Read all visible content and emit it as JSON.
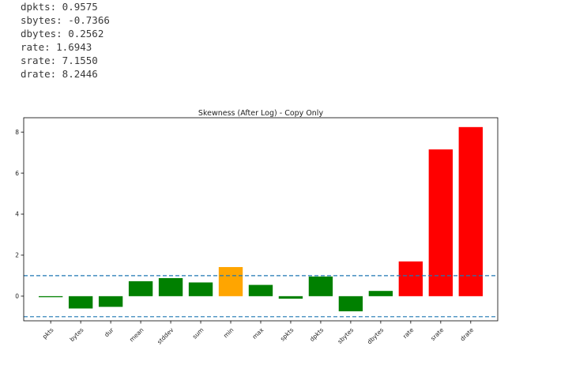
{
  "output": {
    "lines": [
      "dpkts: 0.9575",
      "sbytes: -0.7366",
      "dbytes: 0.2562",
      "rate: 1.6943",
      "srate: 7.1550",
      "drate: 8.2446"
    ]
  },
  "chart_data": {
    "type": "bar",
    "title": "Skewness (After Log) - Copy Only",
    "xlabel": "",
    "ylabel": "",
    "categories": [
      "pkts",
      "bytes",
      "dur",
      "mean",
      "stddev",
      "sum",
      "min",
      "max",
      "spkts",
      "dpkts",
      "sbytes",
      "dbytes",
      "rate",
      "srate",
      "drate"
    ],
    "values": [
      -0.05,
      -0.6,
      -0.52,
      0.73,
      0.88,
      0.67,
      1.42,
      0.55,
      -0.12,
      0.9575,
      -0.7366,
      0.2562,
      1.6943,
      7.155,
      8.2446
    ],
    "colors": [
      "#008000",
      "#008000",
      "#008000",
      "#008000",
      "#008000",
      "#008000",
      "#ffa500",
      "#008000",
      "#008000",
      "#008000",
      "#008000",
      "#008000",
      "#ff0000",
      "#ff0000",
      "#ff0000"
    ],
    "yticks": [
      0,
      2,
      4,
      6,
      8
    ],
    "ylim": [
      -1.2,
      8.7
    ],
    "reference_lines": [
      1,
      -1
    ],
    "reference_line_color": "#1f77b4",
    "grid": false,
    "legend": "none"
  }
}
